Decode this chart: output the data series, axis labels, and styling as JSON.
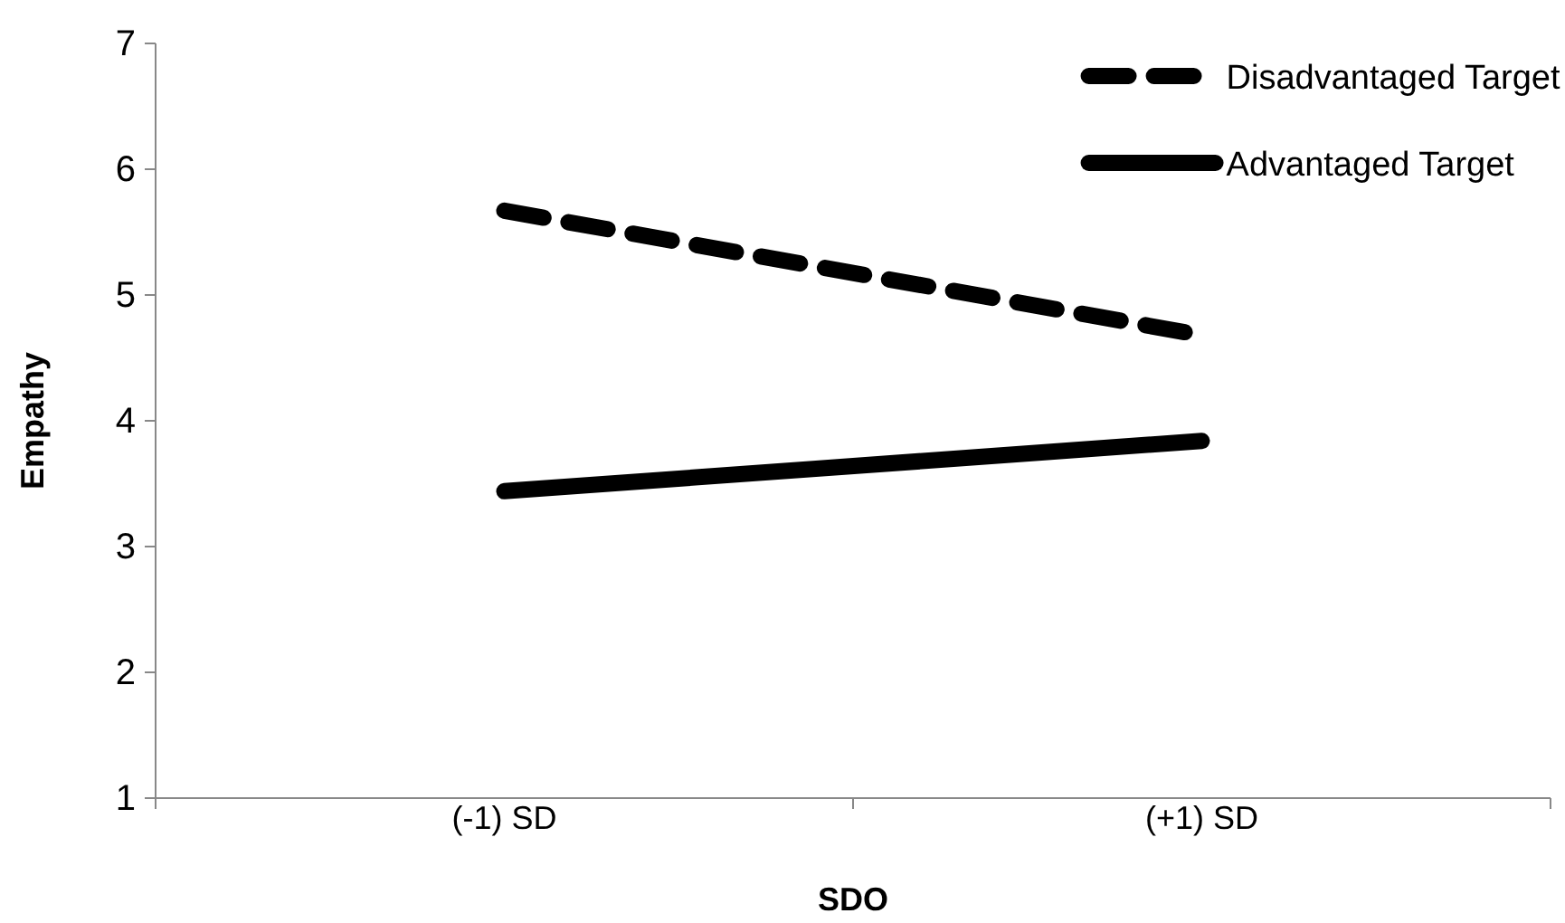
{
  "chart_data": {
    "type": "line",
    "xlabel": "SDO",
    "ylabel": "Empathy",
    "categories": [
      "(-1) SD",
      "(+1) SD"
    ],
    "series": [
      {
        "name": "Disadvantaged Target",
        "color": "#000000",
        "values": [
          5.67,
          4.68
        ],
        "line_style": "dashed"
      },
      {
        "name": "Advantaged Target",
        "color": "#000000",
        "values": [
          3.44,
          3.84
        ],
        "line_style": "solid"
      }
    ],
    "ylim": [
      1,
      7
    ],
    "yticks": [
      1,
      2,
      3,
      4,
      5,
      6,
      7
    ],
    "grid": false,
    "legend": "top right",
    "marker": "none"
  }
}
